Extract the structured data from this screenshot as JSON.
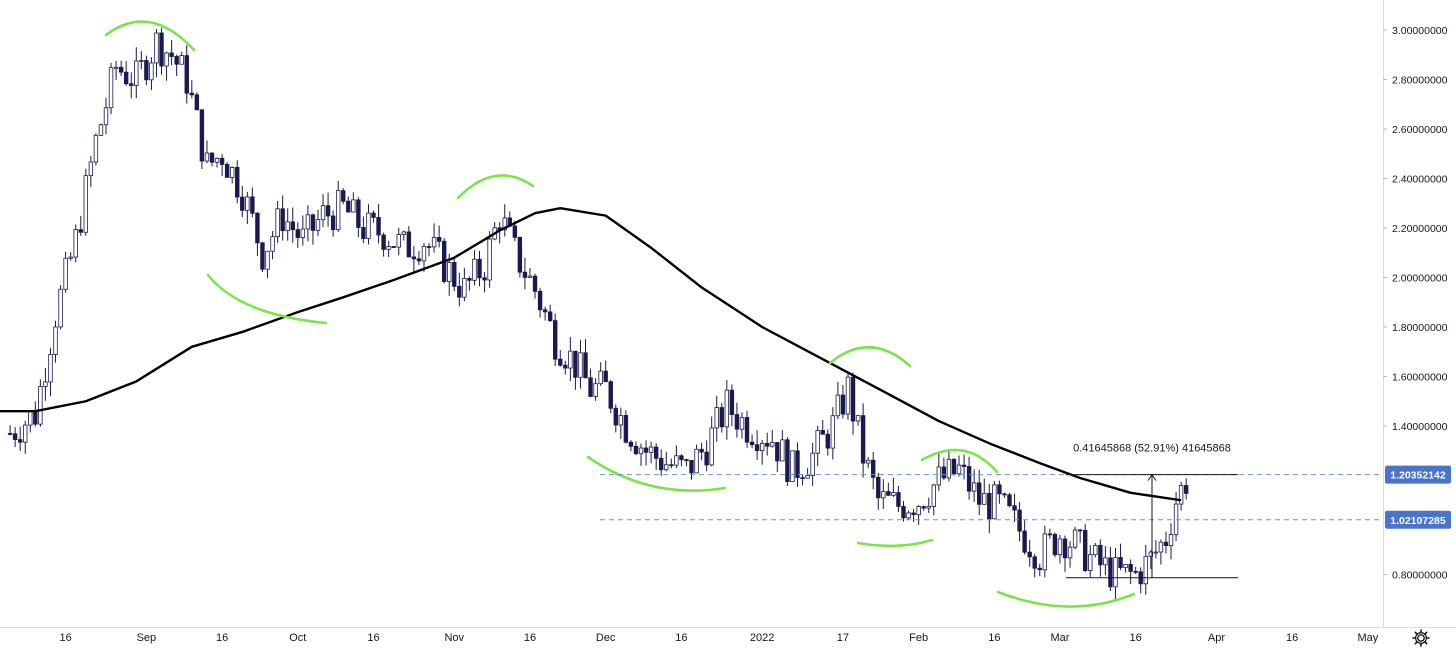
{
  "chart_data": {
    "type": "candlestick",
    "x_axis_ticks": [
      {
        "label": "16",
        "date": "2021-08-16"
      },
      {
        "label": "Sep",
        "date": "2021-09-01"
      },
      {
        "label": "16",
        "date": "2021-09-16"
      },
      {
        "label": "Oct",
        "date": "2021-10-01"
      },
      {
        "label": "16",
        "date": "2021-10-16"
      },
      {
        "label": "Nov",
        "date": "2021-11-01"
      },
      {
        "label": "16",
        "date": "2021-11-16"
      },
      {
        "label": "Dec",
        "date": "2021-12-01"
      },
      {
        "label": "16",
        "date": "2021-12-16"
      },
      {
        "label": "2022",
        "date": "2022-01-01"
      },
      {
        "label": "17",
        "date": "2022-01-17"
      },
      {
        "label": "Feb",
        "date": "2022-02-01"
      },
      {
        "label": "16",
        "date": "2022-02-16"
      },
      {
        "label": "Mar",
        "date": "2022-03-01"
      },
      {
        "label": "16",
        "date": "2022-03-16"
      },
      {
        "label": "Apr",
        "date": "2022-04-01"
      },
      {
        "label": "16",
        "date": "2022-04-16"
      },
      {
        "label": "May",
        "date": "2022-05-01"
      }
    ],
    "y_axis_ticks": [
      "3.00000000",
      "2.80000000",
      "2.60000000",
      "2.40000000",
      "2.20000000",
      "2.00000000",
      "1.80000000",
      "1.60000000",
      "1.40000000",
      "0.80000000"
    ],
    "ylim": [
      0.62,
      3.12
    ],
    "x_range": [
      "2021-08-03",
      "2022-05-04"
    ],
    "colors": {
      "up": "#ffffff",
      "down": "#1a1a4e",
      "ma": "#000000",
      "annotation": "#7ee34a",
      "level": "#6a8fd8",
      "badge": "#4a74c9"
    },
    "price_series": [
      [
        "2021-08-05",
        1.37
      ],
      [
        "2021-08-10",
        1.45
      ],
      [
        "2021-08-14",
        1.85
      ],
      [
        "2021-08-18",
        2.15
      ],
      [
        "2021-08-22",
        2.55
      ],
      [
        "2021-08-26",
        2.85
      ],
      [
        "2021-08-30",
        2.8
      ],
      [
        "2021-09-03",
        2.95
      ],
      [
        "2021-09-06",
        2.9
      ],
      [
        "2021-09-09",
        2.8
      ],
      [
        "2021-09-13",
        2.45
      ],
      [
        "2021-09-16",
        2.5
      ],
      [
        "2021-09-20",
        2.35
      ],
      [
        "2021-09-24",
        2.1
      ],
      [
        "2021-09-28",
        2.25
      ],
      [
        "2021-10-02",
        2.15
      ],
      [
        "2021-10-06",
        2.25
      ],
      [
        "2021-10-10",
        2.28
      ],
      [
        "2021-10-14",
        2.2
      ],
      [
        "2021-10-18",
        2.18
      ],
      [
        "2021-10-22",
        2.12
      ],
      [
        "2021-10-26",
        2.15
      ],
      [
        "2021-10-30",
        2.05
      ],
      [
        "2021-11-03",
        1.95
      ],
      [
        "2021-11-07",
        2.05
      ],
      [
        "2021-11-10",
        2.25
      ],
      [
        "2021-11-13",
        2.1
      ],
      [
        "2021-11-17",
        1.95
      ],
      [
        "2021-11-21",
        1.75
      ],
      [
        "2021-11-25",
        1.65
      ],
      [
        "2021-11-28",
        1.55
      ],
      [
        "2021-12-01",
        1.55
      ],
      [
        "2021-12-05",
        1.4
      ],
      [
        "2021-12-09",
        1.3
      ],
      [
        "2021-12-13",
        1.25
      ],
      [
        "2021-12-17",
        1.22
      ],
      [
        "2021-12-21",
        1.32
      ],
      [
        "2021-12-25",
        1.48
      ],
      [
        "2021-12-29",
        1.4
      ],
      [
        "2022-01-03",
        1.35
      ],
      [
        "2022-01-07",
        1.22
      ],
      [
        "2022-01-11",
        1.28
      ],
      [
        "2022-01-15",
        1.4
      ],
      [
        "2022-01-18",
        1.55
      ],
      [
        "2022-01-21",
        1.28
      ],
      [
        "2022-01-24",
        1.1
      ],
      [
        "2022-01-28",
        1.08
      ],
      [
        "2022-02-01",
        1.1
      ],
      [
        "2022-02-05",
        1.18
      ],
      [
        "2022-02-09",
        1.22
      ],
      [
        "2022-02-13",
        1.1
      ],
      [
        "2022-02-17",
        1.08
      ],
      [
        "2022-02-21",
        0.98
      ],
      [
        "2022-02-25",
        0.88
      ],
      [
        "2022-03-01",
        0.96
      ],
      [
        "2022-03-04",
        0.92
      ],
      [
        "2022-03-08",
        0.85
      ],
      [
        "2022-03-12",
        0.8
      ],
      [
        "2022-03-16",
        0.8
      ],
      [
        "2022-03-19",
        0.86
      ],
      [
        "2022-03-22",
        0.95
      ],
      [
        "2022-03-24",
        1.1
      ],
      [
        "2022-03-26",
        1.18
      ]
    ],
    "moving_average": [
      [
        "2021-08-03",
        1.46
      ],
      [
        "2021-08-10",
        1.46
      ],
      [
        "2021-08-20",
        1.5
      ],
      [
        "2021-08-30",
        1.58
      ],
      [
        "2021-09-10",
        1.72
      ],
      [
        "2021-09-20",
        1.78
      ],
      [
        "2021-10-01",
        1.86
      ],
      [
        "2021-10-10",
        1.92
      ],
      [
        "2021-10-20",
        1.99
      ],
      [
        "2021-11-01",
        2.08
      ],
      [
        "2021-11-10",
        2.19
      ],
      [
        "2021-11-17",
        2.26
      ],
      [
        "2021-11-22",
        2.28
      ],
      [
        "2021-12-01",
        2.25
      ],
      [
        "2021-12-10",
        2.12
      ],
      [
        "2021-12-20",
        1.96
      ],
      [
        "2022-01-01",
        1.8
      ],
      [
        "2022-01-13",
        1.67
      ],
      [
        "2022-01-25",
        1.54
      ],
      [
        "2022-02-05",
        1.42
      ],
      [
        "2022-02-15",
        1.33
      ],
      [
        "2022-02-25",
        1.25
      ],
      [
        "2022-03-05",
        1.19
      ],
      [
        "2022-03-15",
        1.13
      ],
      [
        "2022-03-25",
        1.1
      ]
    ],
    "horizontal_levels": [
      {
        "value": 1.20352142,
        "label": "1.20352142"
      },
      {
        "value": 1.02107285,
        "label": "1.02107285"
      }
    ],
    "measure": {
      "text": "0.41645868 (52.91%) 41645868",
      "from": {
        "date": "2022-03-10",
        "price": 0.787
      },
      "to": {
        "date": "2022-04-09",
        "price": 1.20352142
      }
    }
  },
  "toolbar": {
    "settings_icon": "gear-icon"
  }
}
